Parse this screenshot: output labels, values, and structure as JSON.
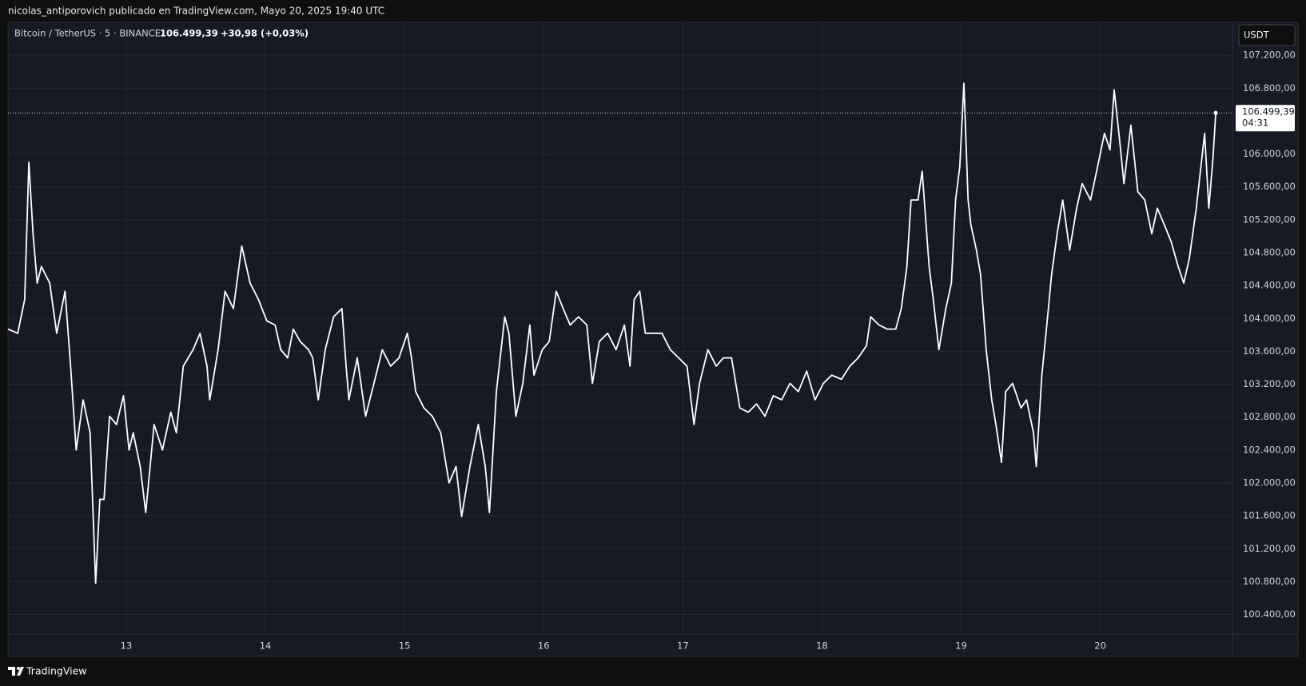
{
  "header": {
    "publisher": "nicolas_antiporovich publicado en TradingView.com, Mayo 20, 2025 19:40 UTC",
    "symbol": "Bitcoin / TetherUS · 5 · BINANCE",
    "change": "+30,98 (+0,03%)",
    "currency": "USDT",
    "countdown": "04:31",
    "brand": "TradingView"
  },
  "chart_data": {
    "type": "line",
    "color": "#ffffff",
    "grid": true,
    "last_price": {
      "value": 106499.39,
      "label": "106.499,39"
    },
    "xlim": [
      12.15,
      20.95
    ],
    "xticks": [
      13,
      14,
      15,
      16,
      17,
      18,
      19,
      20
    ],
    "ylim": [
      99890,
      107600
    ],
    "yticks": [
      {
        "value": 100400,
        "label": "100.400,00"
      },
      {
        "value": 100800,
        "label": "100.800,00"
      },
      {
        "value": 101200,
        "label": "101.200,00"
      },
      {
        "value": 101600,
        "label": "101.600,00"
      },
      {
        "value": 102000,
        "label": "102.000,00"
      },
      {
        "value": 102400,
        "label": "102.400,00"
      },
      {
        "value": 102800,
        "label": "102.800,00"
      },
      {
        "value": 103200,
        "label": "103.200,00"
      },
      {
        "value": 103600,
        "label": "103.600,00"
      },
      {
        "value": 104000,
        "label": "104.000,00"
      },
      {
        "value": 104400,
        "label": "104.400,00"
      },
      {
        "value": 104800,
        "label": "104.800,00"
      },
      {
        "value": 105200,
        "label": "105.200,00"
      },
      {
        "value": 105600,
        "label": "105.600,00"
      },
      {
        "value": 106000,
        "label": "106.000,00"
      },
      {
        "value": 106800,
        "label": "106.800,00"
      },
      {
        "value": 107200,
        "label": "107.200,00"
      }
    ],
    "x": [
      12.15,
      12.22,
      12.27,
      12.3,
      12.33,
      12.36,
      12.39,
      12.45,
      12.5,
      12.56,
      12.6,
      12.64,
      12.69,
      12.74,
      12.78,
      12.81,
      12.84,
      12.88,
      12.93,
      12.98,
      13.02,
      13.05,
      13.1,
      13.14,
      13.2,
      13.26,
      13.32,
      13.36,
      13.41,
      13.48,
      13.53,
      13.58,
      13.6,
      13.66,
      13.71,
      13.77,
      13.83,
      13.89,
      13.95,
      14.01,
      14.07,
      14.11,
      14.16,
      14.2,
      14.25,
      14.31,
      14.34,
      14.38,
      14.43,
      14.49,
      14.55,
      14.58,
      14.6,
      14.66,
      14.72,
      14.78,
      14.84,
      14.9,
      14.96,
      15.02,
      15.05,
      15.08,
      15.14,
      15.2,
      15.26,
      15.32,
      15.37,
      15.41,
      15.47,
      15.53,
      15.58,
      15.61,
      15.66,
      15.72,
      15.75,
      15.8,
      15.85,
      15.9,
      15.93,
      15.99,
      16.04,
      16.09,
      16.14,
      16.19,
      16.25,
      16.31,
      16.35,
      16.4,
      16.46,
      16.52,
      16.58,
      16.62,
      16.65,
      16.69,
      16.73,
      16.79,
      16.85,
      16.91,
      16.97,
      17.03,
      17.08,
      17.12,
      17.18,
      17.24,
      17.29,
      17.35,
      17.41,
      17.47,
      17.53,
      17.59,
      17.65,
      17.71,
      17.77,
      17.83,
      17.89,
      17.95,
      18.01,
      18.07,
      18.14,
      18.2,
      18.26,
      18.32,
      18.35,
      18.41,
      18.47,
      18.53,
      18.57,
      18.61,
      18.64,
      18.69,
      18.72,
      18.77,
      18.8,
      18.84,
      18.89,
      18.93,
      18.96,
      18.99,
      19.02,
      19.05,
      19.07,
      19.11,
      19.14,
      19.18,
      19.22,
      19.25,
      19.29,
      19.32,
      19.37,
      19.43,
      19.47,
      19.52,
      19.54,
      19.58,
      19.61,
      19.65,
      19.69,
      19.73,
      19.78,
      19.83,
      19.87,
      19.93,
      19.98,
      20.03,
      20.07,
      20.1,
      20.14,
      20.17,
      20.22,
      20.27,
      20.32,
      20.37,
      20.41,
      20.46,
      20.51,
      20.56,
      20.6,
      20.64,
      20.69,
      20.75,
      20.78,
      20.81,
      20.83
    ],
    "values": [
      103870,
      103820,
      104230,
      105900,
      105030,
      104430,
      104630,
      104430,
      103820,
      104330,
      103420,
      102400,
      103010,
      102610,
      100780,
      101800,
      101800,
      102810,
      102710,
      103060,
      102400,
      102610,
      102200,
      101640,
      102710,
      102400,
      102860,
      102610,
      103420,
      103620,
      103820,
      103420,
      103010,
      103620,
      104330,
      104120,
      104880,
      104430,
      104230,
      103970,
      103920,
      103620,
      103520,
      103870,
      103720,
      103620,
      103520,
      103010,
      103620,
      104020,
      104120,
      103420,
      103010,
      103520,
      102810,
      103210,
      103620,
      103420,
      103520,
      103820,
      103520,
      103110,
      102910,
      102810,
      102610,
      102000,
      102200,
      101590,
      102200,
      102710,
      102200,
      101640,
      103110,
      104020,
      103820,
      102810,
      103210,
      103920,
      103310,
      103620,
      103720,
      104330,
      104120,
      103920,
      104020,
      103920,
      103210,
      103720,
      103820,
      103620,
      103920,
      103420,
      104230,
      104330,
      103820,
      103820,
      103820,
      103620,
      103520,
      103420,
      102710,
      103210,
      103620,
      103420,
      103520,
      103520,
      102910,
      102860,
      102960,
      102810,
      103060,
      103010,
      103210,
      103110,
      103360,
      103010,
      103210,
      103310,
      103260,
      103420,
      103520,
      103670,
      104020,
      103920,
      103870,
      103870,
      104120,
      104630,
      105440,
      105440,
      105790,
      104630,
      104230,
      103620,
      104120,
      104430,
      105440,
      105840,
      106860,
      105440,
      105140,
      104830,
      104530,
      103620,
      103010,
      102710,
      102250,
      103110,
      103210,
      102910,
      103010,
      102610,
      102200,
      103310,
      103820,
      104530,
      105030,
      105440,
      104830,
      105340,
      105640,
      105440,
      105840,
      106250,
      106050,
      106780,
      106150,
      105640,
      106350,
      105540,
      105440,
      105030,
      105340,
      105140,
      104930,
      104630,
      104430,
      104730,
      105340,
      106250,
      105340,
      105950,
      106499.39
    ]
  }
}
